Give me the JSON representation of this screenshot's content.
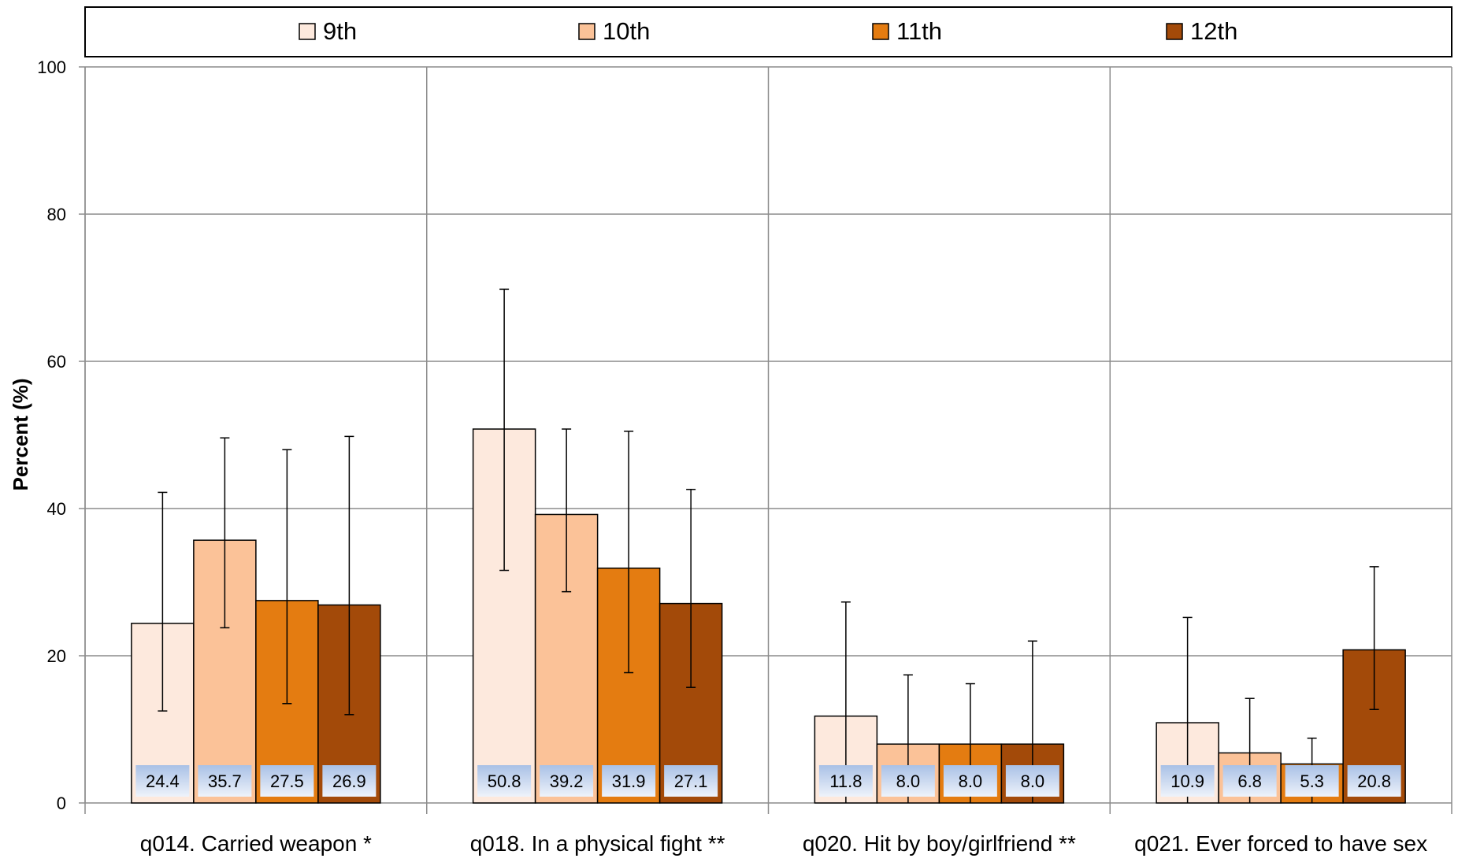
{
  "chart_data": {
    "type": "bar",
    "title": "",
    "xlabel": "",
    "ylabel": "Percent (%)",
    "ylim": [
      0,
      100
    ],
    "yticks": [
      0,
      20,
      40,
      60,
      80,
      100
    ],
    "grid": true,
    "legend_position": "top",
    "categories": [
      "q014. Carried weapon *",
      "q018. In a physical fight **",
      "q020. Hit by boy/girlfriend **",
      "q021. Ever forced to have sex"
    ],
    "series": [
      {
        "name": "9th",
        "color": "#FDE9DD",
        "values": [
          24.4,
          50.8,
          11.8,
          10.9
        ],
        "labels": [
          "24.4",
          "50.8",
          "11.8",
          "10.9"
        ],
        "err_low": [
          12.5,
          31.6,
          0,
          0
        ],
        "err_high": [
          42.2,
          69.8,
          27.3,
          25.2
        ]
      },
      {
        "name": "10th",
        "color": "#FBC298",
        "values": [
          35.7,
          39.2,
          8.0,
          6.8
        ],
        "labels": [
          "35.7",
          "39.2",
          "8.0",
          "6.8"
        ],
        "err_low": [
          23.8,
          28.7,
          0,
          0
        ],
        "err_high": [
          49.6,
          50.8,
          17.4,
          14.2
        ]
      },
      {
        "name": "11th",
        "color": "#E47C11",
        "values": [
          27.5,
          31.9,
          8.0,
          5.3
        ],
        "labels": [
          "27.5",
          "31.9",
          "8.0",
          "5.3"
        ],
        "err_low": [
          13.5,
          17.7,
          0,
          0
        ],
        "err_high": [
          48.0,
          50.5,
          16.2,
          8.8
        ]
      },
      {
        "name": "12th",
        "color": "#A34A09",
        "values": [
          26.9,
          27.1,
          8.0,
          20.8
        ],
        "labels": [
          "26.9",
          "27.1",
          "8.0",
          "20.8"
        ],
        "err_low": [
          12.0,
          15.7,
          0,
          12.7
        ],
        "err_high": [
          49.8,
          42.6,
          22.0,
          32.1
        ]
      }
    ]
  }
}
